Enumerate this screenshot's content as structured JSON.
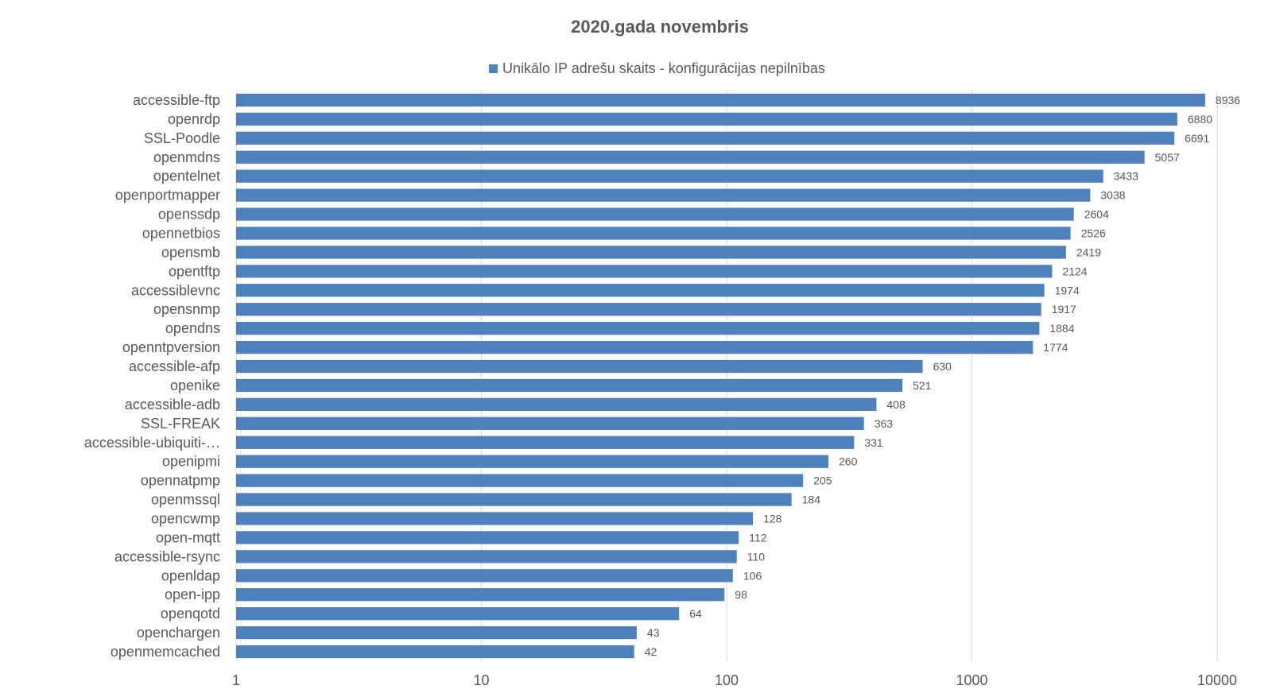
{
  "chart_data": {
    "type": "bar",
    "orientation": "horizontal",
    "title": "2020.gada  novembris",
    "legend_position": "top",
    "x_scale": "log",
    "xlim": [
      1,
      10000
    ],
    "x_ticks": [
      "1",
      "10",
      "100",
      "1000",
      "10000"
    ],
    "grid": true,
    "color": "#4f81bd",
    "series": [
      {
        "name": "Unikālo IP adrešu skaits  -  konfigurācijas nepilnības",
        "values": [
          8936,
          6880,
          6691,
          5057,
          3433,
          3038,
          2604,
          2526,
          2419,
          2124,
          1974,
          1917,
          1884,
          1774,
          630,
          521,
          408,
          363,
          331,
          260,
          205,
          184,
          128,
          112,
          110,
          106,
          98,
          64,
          43,
          42
        ]
      }
    ],
    "categories": [
      "accessible-ftp",
      "openrdp",
      "SSL-Poodle",
      "openmdns",
      "opentelnet",
      "openportmapper",
      "openssdp",
      "opennetbios",
      "opensmb",
      "opentftp",
      "accessiblevnc",
      "opensnmp",
      "opendns",
      "openntpversion",
      "accessible-afp",
      "openike",
      "accessible-adb",
      "SSL-FREAK",
      "accessible-ubiquiti-…",
      "openipmi",
      "opennatpmp",
      "openmssql",
      "opencwmp",
      "open-mqtt",
      "accessible-rsync",
      "openldap",
      "open-ipp",
      "openqotd",
      "openchargen",
      "openmemcached"
    ]
  }
}
